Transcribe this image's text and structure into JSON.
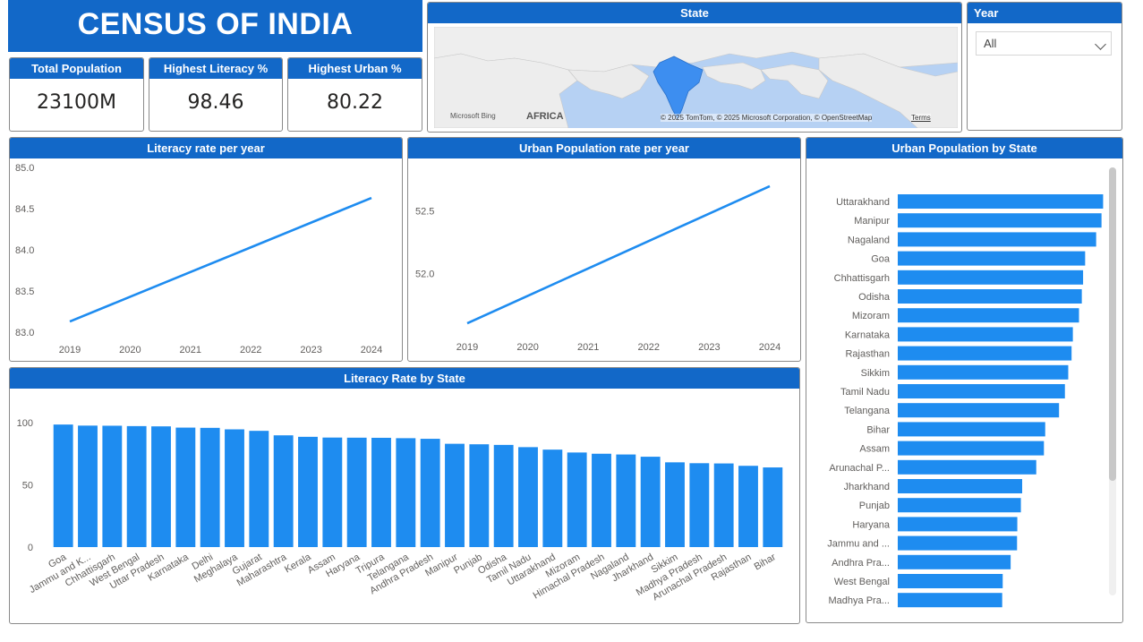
{
  "banner": {
    "title": "CENSUS OF INDIA"
  },
  "kpis": [
    {
      "label": "Total Population",
      "value": "23100M"
    },
    {
      "label": "Highest Literacy %",
      "value": "98.46"
    },
    {
      "label": "Highest Urban %",
      "value": "80.22"
    }
  ],
  "map": {
    "title": "State",
    "region_label": "AFRICA",
    "attribution": "© 2025 TomTom, © 2025 Microsoft Corporation, © OpenStreetMap",
    "terms": "Terms",
    "logo": "Microsoft Bing",
    "highlight_color": "#3d8ef0"
  },
  "year_slicer": {
    "title": "Year",
    "selected": "All"
  },
  "colors": {
    "accent": "#1268c8",
    "bar": "#1e8cf0"
  },
  "chart_data": [
    {
      "id": "literacy_per_year",
      "type": "line",
      "title": "Literacy rate per year",
      "x": [
        2019,
        2020,
        2021,
        2022,
        2023,
        2024
      ],
      "xticks": [
        "2019",
        "2020",
        "2021",
        "2022",
        "2023",
        "2024"
      ],
      "values": [
        83.13,
        83.43,
        83.73,
        84.03,
        84.33,
        84.63
      ],
      "yticks": [
        "85.0",
        "84.5",
        "84.0",
        "83.5",
        "83.0"
      ],
      "ylim": [
        83.0,
        85.0
      ]
    },
    {
      "id": "urban_per_year",
      "type": "line",
      "title": "Urban Population rate per year",
      "x": [
        2019,
        2020,
        2021,
        2022,
        2023,
        2024
      ],
      "xticks": [
        "2019",
        "2020",
        "2021",
        "2022",
        "2023",
        "2024"
      ],
      "values": [
        51.6,
        51.82,
        52.04,
        52.26,
        52.48,
        52.7
      ],
      "yticks": [
        "52.5",
        "52.0"
      ],
      "ylim": [
        51.55,
        52.85
      ]
    },
    {
      "id": "literacy_by_state",
      "type": "bar",
      "title": "Literacy Rate by State",
      "categories": [
        "Goa",
        "Jammu and K...",
        "Chhattisgarh",
        "West Bengal",
        "Uttar Pradesh",
        "Karnataka",
        "Delhi",
        "Meghalaya",
        "Gujarat",
        "Maharashtra",
        "Kerala",
        "Assam",
        "Haryana",
        "Tripura",
        "Telangana",
        "Andhra Pradesh",
        "Manipur",
        "Punjab",
        "Odisha",
        "Tamil Nadu",
        "Uttarakhand",
        "Mizoram",
        "Himachal Pradesh",
        "Nagaland",
        "Jharkhand",
        "Sikkim",
        "Madhya Pradesh",
        "Arunachal Pradesh",
        "Rajasthan",
        "Bihar"
      ],
      "values": [
        98.46,
        97.6,
        97.5,
        97.2,
        97.0,
        96.0,
        95.8,
        94.6,
        93.4,
        89.8,
        88.6,
        88.0,
        87.9,
        87.8,
        87.5,
        87.0,
        83.0,
        82.6,
        82.1,
        80.3,
        78.3,
        76.0,
        75.0,
        74.4,
        72.6,
        68.1,
        67.4,
        67.2,
        65.3,
        64.0
      ],
      "yticks": [
        "100",
        "50",
        "0"
      ],
      "ylim": [
        0,
        100
      ]
    },
    {
      "id": "urban_by_state",
      "type": "bar",
      "orientation": "horizontal",
      "title": "Urban Population by State",
      "categories": [
        "Uttarakhand",
        "Manipur",
        "Nagaland",
        "Goa",
        "Chhattisgarh",
        "Odisha",
        "Mizoram",
        "Karnataka",
        "Rajasthan",
        "Sikkim",
        "Tamil Nadu",
        "Telangana",
        "Bihar",
        "Assam",
        "Arunachal P...",
        "Jharkhand",
        "Punjab",
        "Haryana",
        "Jammu and ...",
        "Andhra Pra...",
        "West Bengal",
        "Madhya Pra..."
      ],
      "values": [
        80.22,
        79.6,
        77.5,
        73.2,
        72.4,
        71.9,
        70.8,
        68.4,
        67.9,
        66.6,
        65.3,
        63.0,
        57.6,
        57.1,
        54.1,
        48.6,
        48.1,
        46.7,
        46.6,
        44.1,
        41.0,
        40.8
      ],
      "xticks": [
        "0",
        "50"
      ],
      "xlim": [
        0,
        80
      ]
    }
  ]
}
